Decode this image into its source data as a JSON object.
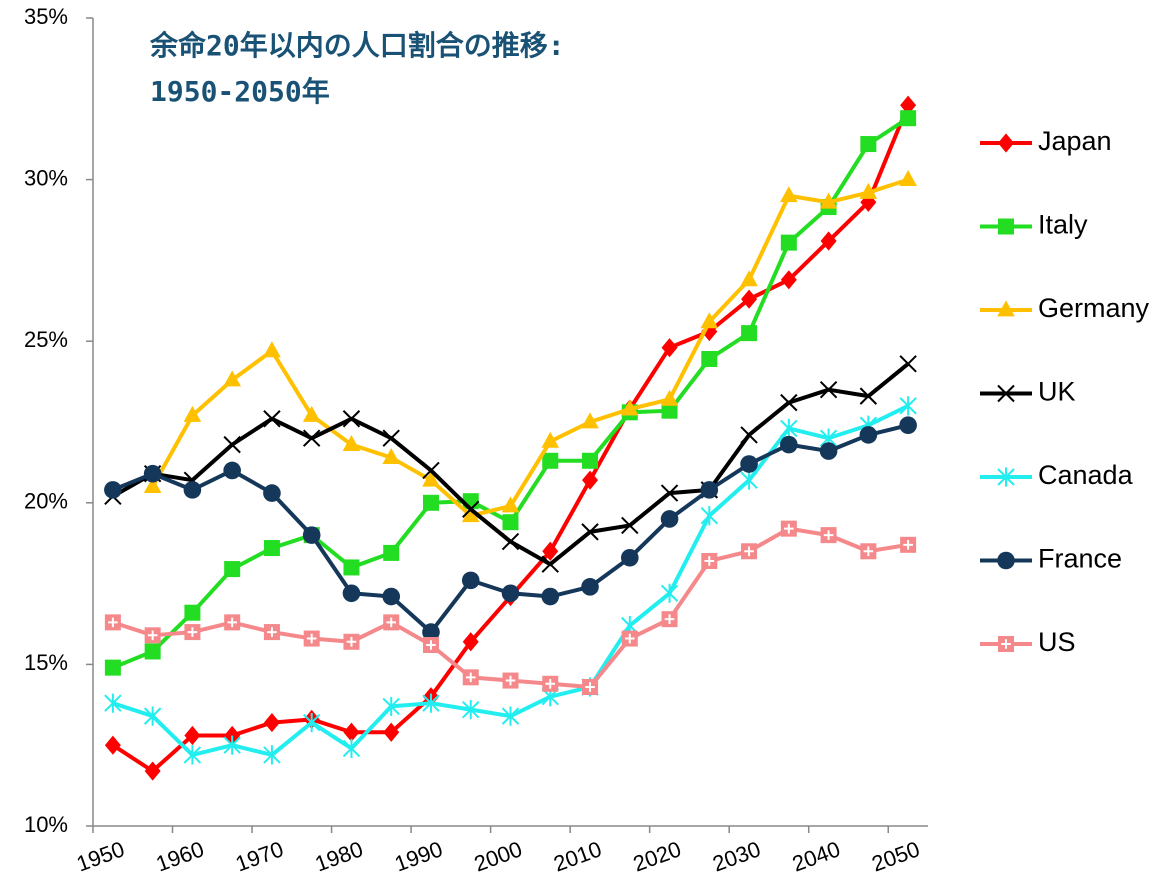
{
  "chart_data": {
    "type": "line",
    "title": "余命20年以内の人口割合の推移:",
    "subtitle": "1950-2050年",
    "x": [
      1952.5,
      1957.5,
      1962.5,
      1967.5,
      1972.5,
      1977.5,
      1982.5,
      1987.5,
      1992.5,
      1997.5,
      2002.5,
      2007.5,
      2012.5,
      2017.5,
      2022.5,
      2027.5,
      2032.5,
      2037.5,
      2042.5,
      2047.5,
      2052.5
    ],
    "xlim": [
      1950,
      2055
    ],
    "xticks": [
      1950,
      1960,
      1970,
      1980,
      1990,
      2000,
      2010,
      2020,
      2030,
      2040,
      2050
    ],
    "ylim": [
      10,
      35
    ],
    "yticks": [
      {
        "value": 10,
        "label": "10%"
      },
      {
        "value": 15,
        "label": "15%"
      },
      {
        "value": 20,
        "label": "20%"
      },
      {
        "value": 25,
        "label": "25%"
      },
      {
        "value": 30,
        "label": "30%"
      },
      {
        "value": 35,
        "label": "35%"
      }
    ],
    "grid": false,
    "legend": "right",
    "series": [
      {
        "name": "Japan",
        "color": "#ff0000",
        "marker": "diamond",
        "values": [
          12.5,
          11.7,
          12.8,
          12.8,
          13.2,
          13.3,
          12.9,
          12.9,
          14.0,
          15.7,
          17.1,
          18.5,
          20.7,
          22.9,
          24.8,
          25.3,
          26.3,
          26.9,
          28.1,
          29.3,
          32.3
        ]
      },
      {
        "name": "Italy",
        "color": "#22dd22",
        "marker": "square",
        "values": [
          14.9,
          15.4,
          16.6,
          17.95,
          18.6,
          19.0,
          18.0,
          18.45,
          20.0,
          20.05,
          19.4,
          21.3,
          21.3,
          22.8,
          22.85,
          24.45,
          25.25,
          28.05,
          29.15,
          31.1,
          31.9
        ]
      },
      {
        "name": "Germany",
        "color": "#ffc000",
        "marker": "triangle",
        "values": [
          null,
          20.5,
          22.7,
          23.8,
          24.7,
          22.7,
          21.8,
          21.4,
          20.7,
          19.6,
          19.9,
          21.9,
          22.5,
          22.9,
          23.2,
          25.6,
          26.9,
          29.5,
          29.3,
          29.6,
          30.0
        ]
      },
      {
        "name": "UK",
        "color": "#000000",
        "marker": "x",
        "values": [
          20.2,
          20.9,
          20.7,
          21.8,
          22.6,
          22.0,
          22.6,
          22.0,
          21.0,
          19.8,
          18.8,
          18.1,
          19.1,
          19.3,
          20.3,
          20.4,
          22.1,
          23.1,
          23.5,
          23.3,
          24.3
        ]
      },
      {
        "name": "Canada",
        "color": "#22eef0",
        "marker": "star",
        "values": [
          13.8,
          13.4,
          12.2,
          12.5,
          12.2,
          13.2,
          12.4,
          13.7,
          13.8,
          13.6,
          13.4,
          14.0,
          14.3,
          16.2,
          17.2,
          19.6,
          20.7,
          22.3,
          22.0,
          22.4,
          23.0
        ]
      },
      {
        "name": "France",
        "color": "#14375a",
        "marker": "circle",
        "values": [
          20.4,
          20.9,
          20.4,
          21.0,
          20.3,
          19.0,
          17.2,
          17.1,
          16.0,
          17.6,
          17.2,
          17.1,
          17.4,
          18.3,
          19.5,
          20.4,
          21.2,
          21.8,
          21.6,
          22.1,
          22.4
        ]
      },
      {
        "name": "US",
        "color": "#f4888a",
        "marker": "crosssquare",
        "values": [
          16.3,
          15.9,
          16.0,
          16.3,
          16.0,
          15.8,
          15.7,
          16.3,
          15.6,
          14.6,
          14.5,
          14.4,
          14.3,
          15.8,
          16.4,
          18.2,
          18.5,
          19.2,
          19.0,
          18.5,
          18.7
        ]
      }
    ]
  }
}
